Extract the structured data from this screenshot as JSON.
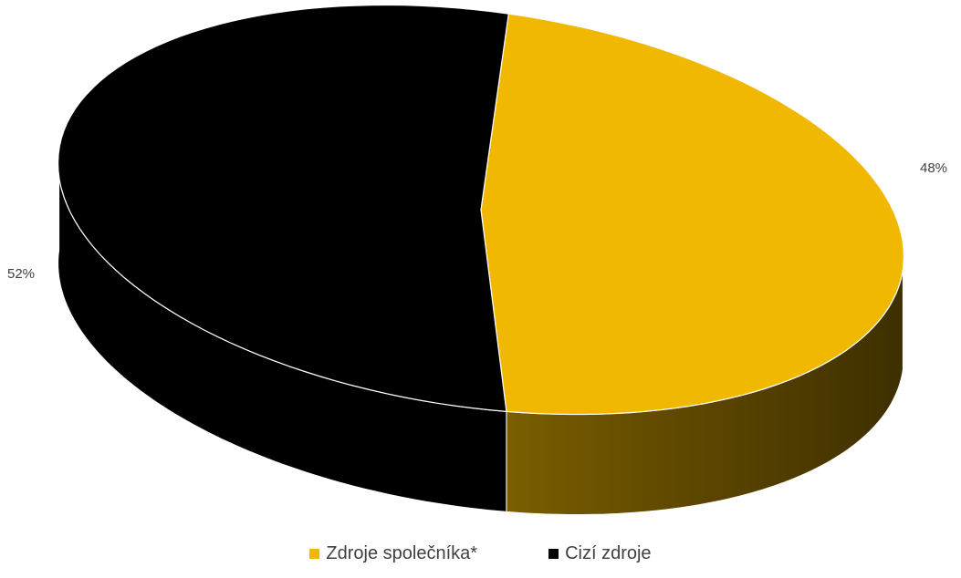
{
  "chart_data": {
    "type": "pie",
    "style": "3d",
    "slices": [
      {
        "label": "Zdroje společníka*",
        "value": 48,
        "data_label": "48%",
        "color": "#F0B800"
      },
      {
        "label": "Cizí zdroje",
        "value": 52,
        "data_label": "52%",
        "color": "#000000"
      }
    ],
    "legend_position": "bottom"
  }
}
